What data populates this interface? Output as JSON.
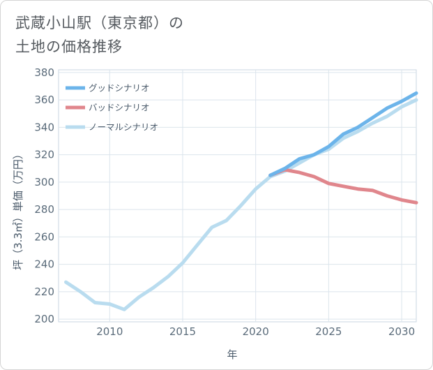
{
  "header": {
    "title_line1": "武蔵小山駅（東京都）の",
    "title_line2": "土地の価格推移"
  },
  "chart_data": {
    "type": "line",
    "title": "武蔵小山駅（東京都）の土地の価格推移",
    "xlabel": "年",
    "ylabel": "坪（3.3㎡）単価（万円）",
    "xlim": [
      2006.5,
      2031
    ],
    "ylim": [
      198,
      382
    ],
    "xticks": [
      2010,
      2015,
      2020,
      2025,
      2030
    ],
    "yticks": [
      200,
      220,
      240,
      260,
      280,
      300,
      320,
      340,
      360,
      380
    ],
    "legend_position": "top-left",
    "series": [
      {
        "name": "グッドシナリオ",
        "color": "#6cb4ea",
        "x": [
          2021,
          2022,
          2023,
          2024,
          2025,
          2026,
          2027,
          2028,
          2029,
          2030,
          2031
        ],
        "y": [
          305,
          310,
          317,
          320,
          326,
          335,
          340,
          347,
          354,
          359,
          365
        ]
      },
      {
        "name": "バッドシナリオ",
        "color": "#e0868c",
        "x": [
          2021,
          2022,
          2023,
          2024,
          2025,
          2026,
          2027,
          2028,
          2029,
          2030,
          2031
        ],
        "y": [
          305,
          309,
          307,
          304,
          299,
          297,
          295,
          294,
          290,
          287,
          285
        ]
      },
      {
        "name": "ノーマルシナリオ",
        "color": "#b9dcef",
        "x": [
          2007,
          2008,
          2009,
          2010,
          2011,
          2012,
          2013,
          2014,
          2015,
          2016,
          2017,
          2018,
          2019,
          2020,
          2021,
          2022,
          2023,
          2024,
          2025,
          2026,
          2027,
          2028,
          2029,
          2030,
          2031
        ],
        "y": [
          227,
          220,
          212,
          211,
          207,
          216,
          223,
          231,
          241,
          254,
          267,
          272,
          283,
          295,
          304,
          308,
          314,
          320,
          324,
          332,
          337,
          343,
          348,
          355,
          360
        ]
      }
    ]
  }
}
